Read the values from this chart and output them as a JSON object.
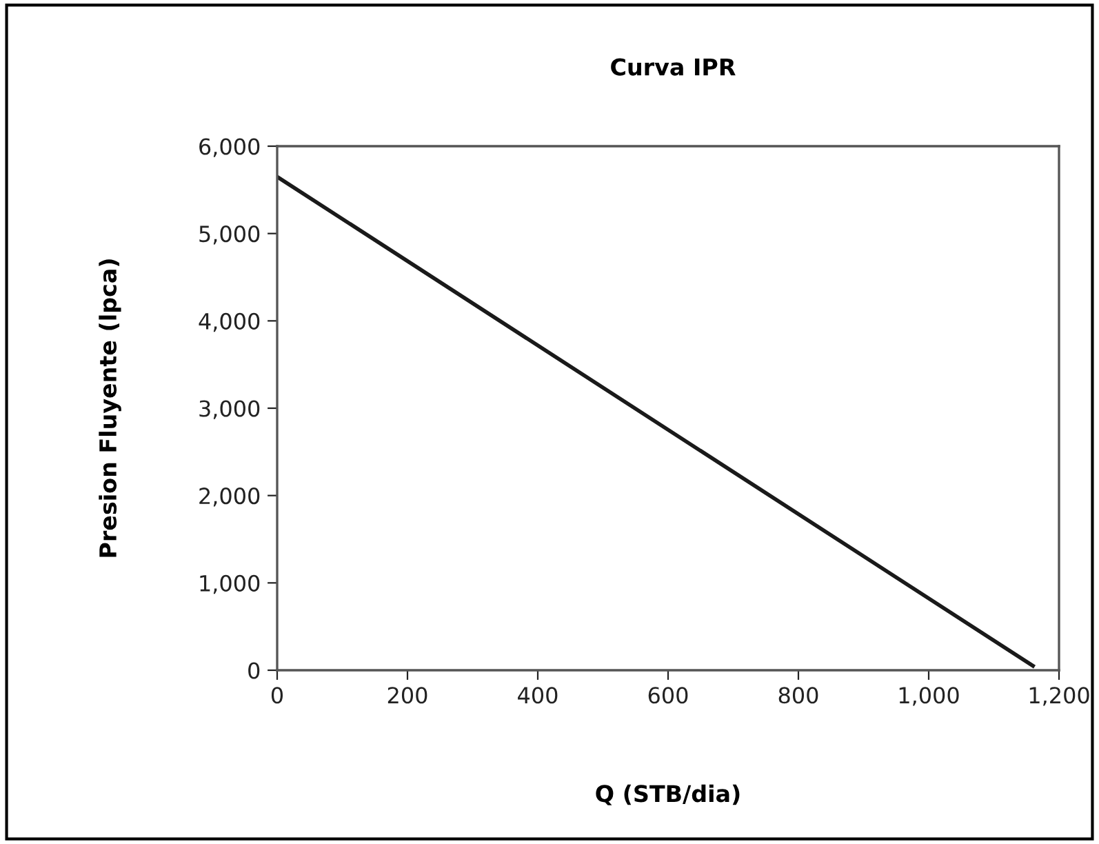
{
  "chart_data": {
    "type": "line",
    "title": "Curva IPR",
    "xlabel": "Q (STB/dia)",
    "ylabel": "Presion Fluyente (lpca)",
    "x": [
      0,
      1160
    ],
    "series": [
      {
        "color": "#1a1a1a",
        "values": [
          5650,
          50
        ]
      }
    ],
    "xlim": [
      0,
      1200
    ],
    "xticks": [
      {
        "value": 0,
        "label": "0"
      },
      {
        "value": 200,
        "label": "200"
      },
      {
        "value": 400,
        "label": "400"
      },
      {
        "value": 600,
        "label": "600"
      },
      {
        "value": 800,
        "label": "800"
      },
      {
        "value": 1000,
        "label": "1,000"
      },
      {
        "value": 1200,
        "label": "1,200"
      }
    ],
    "ylim": [
      0,
      6000
    ],
    "yticks": [
      {
        "value": 0,
        "label": "0"
      },
      {
        "value": 1000,
        "label": "1,000"
      },
      {
        "value": 2000,
        "label": "2,000"
      },
      {
        "value": 3000,
        "label": "3,000"
      },
      {
        "value": 4000,
        "label": "4,000"
      },
      {
        "value": 5000,
        "label": "5,000"
      },
      {
        "value": 6000,
        "label": "6,000"
      }
    ],
    "grid": false,
    "legend": false,
    "marker": "none",
    "line_style": "solid"
  }
}
